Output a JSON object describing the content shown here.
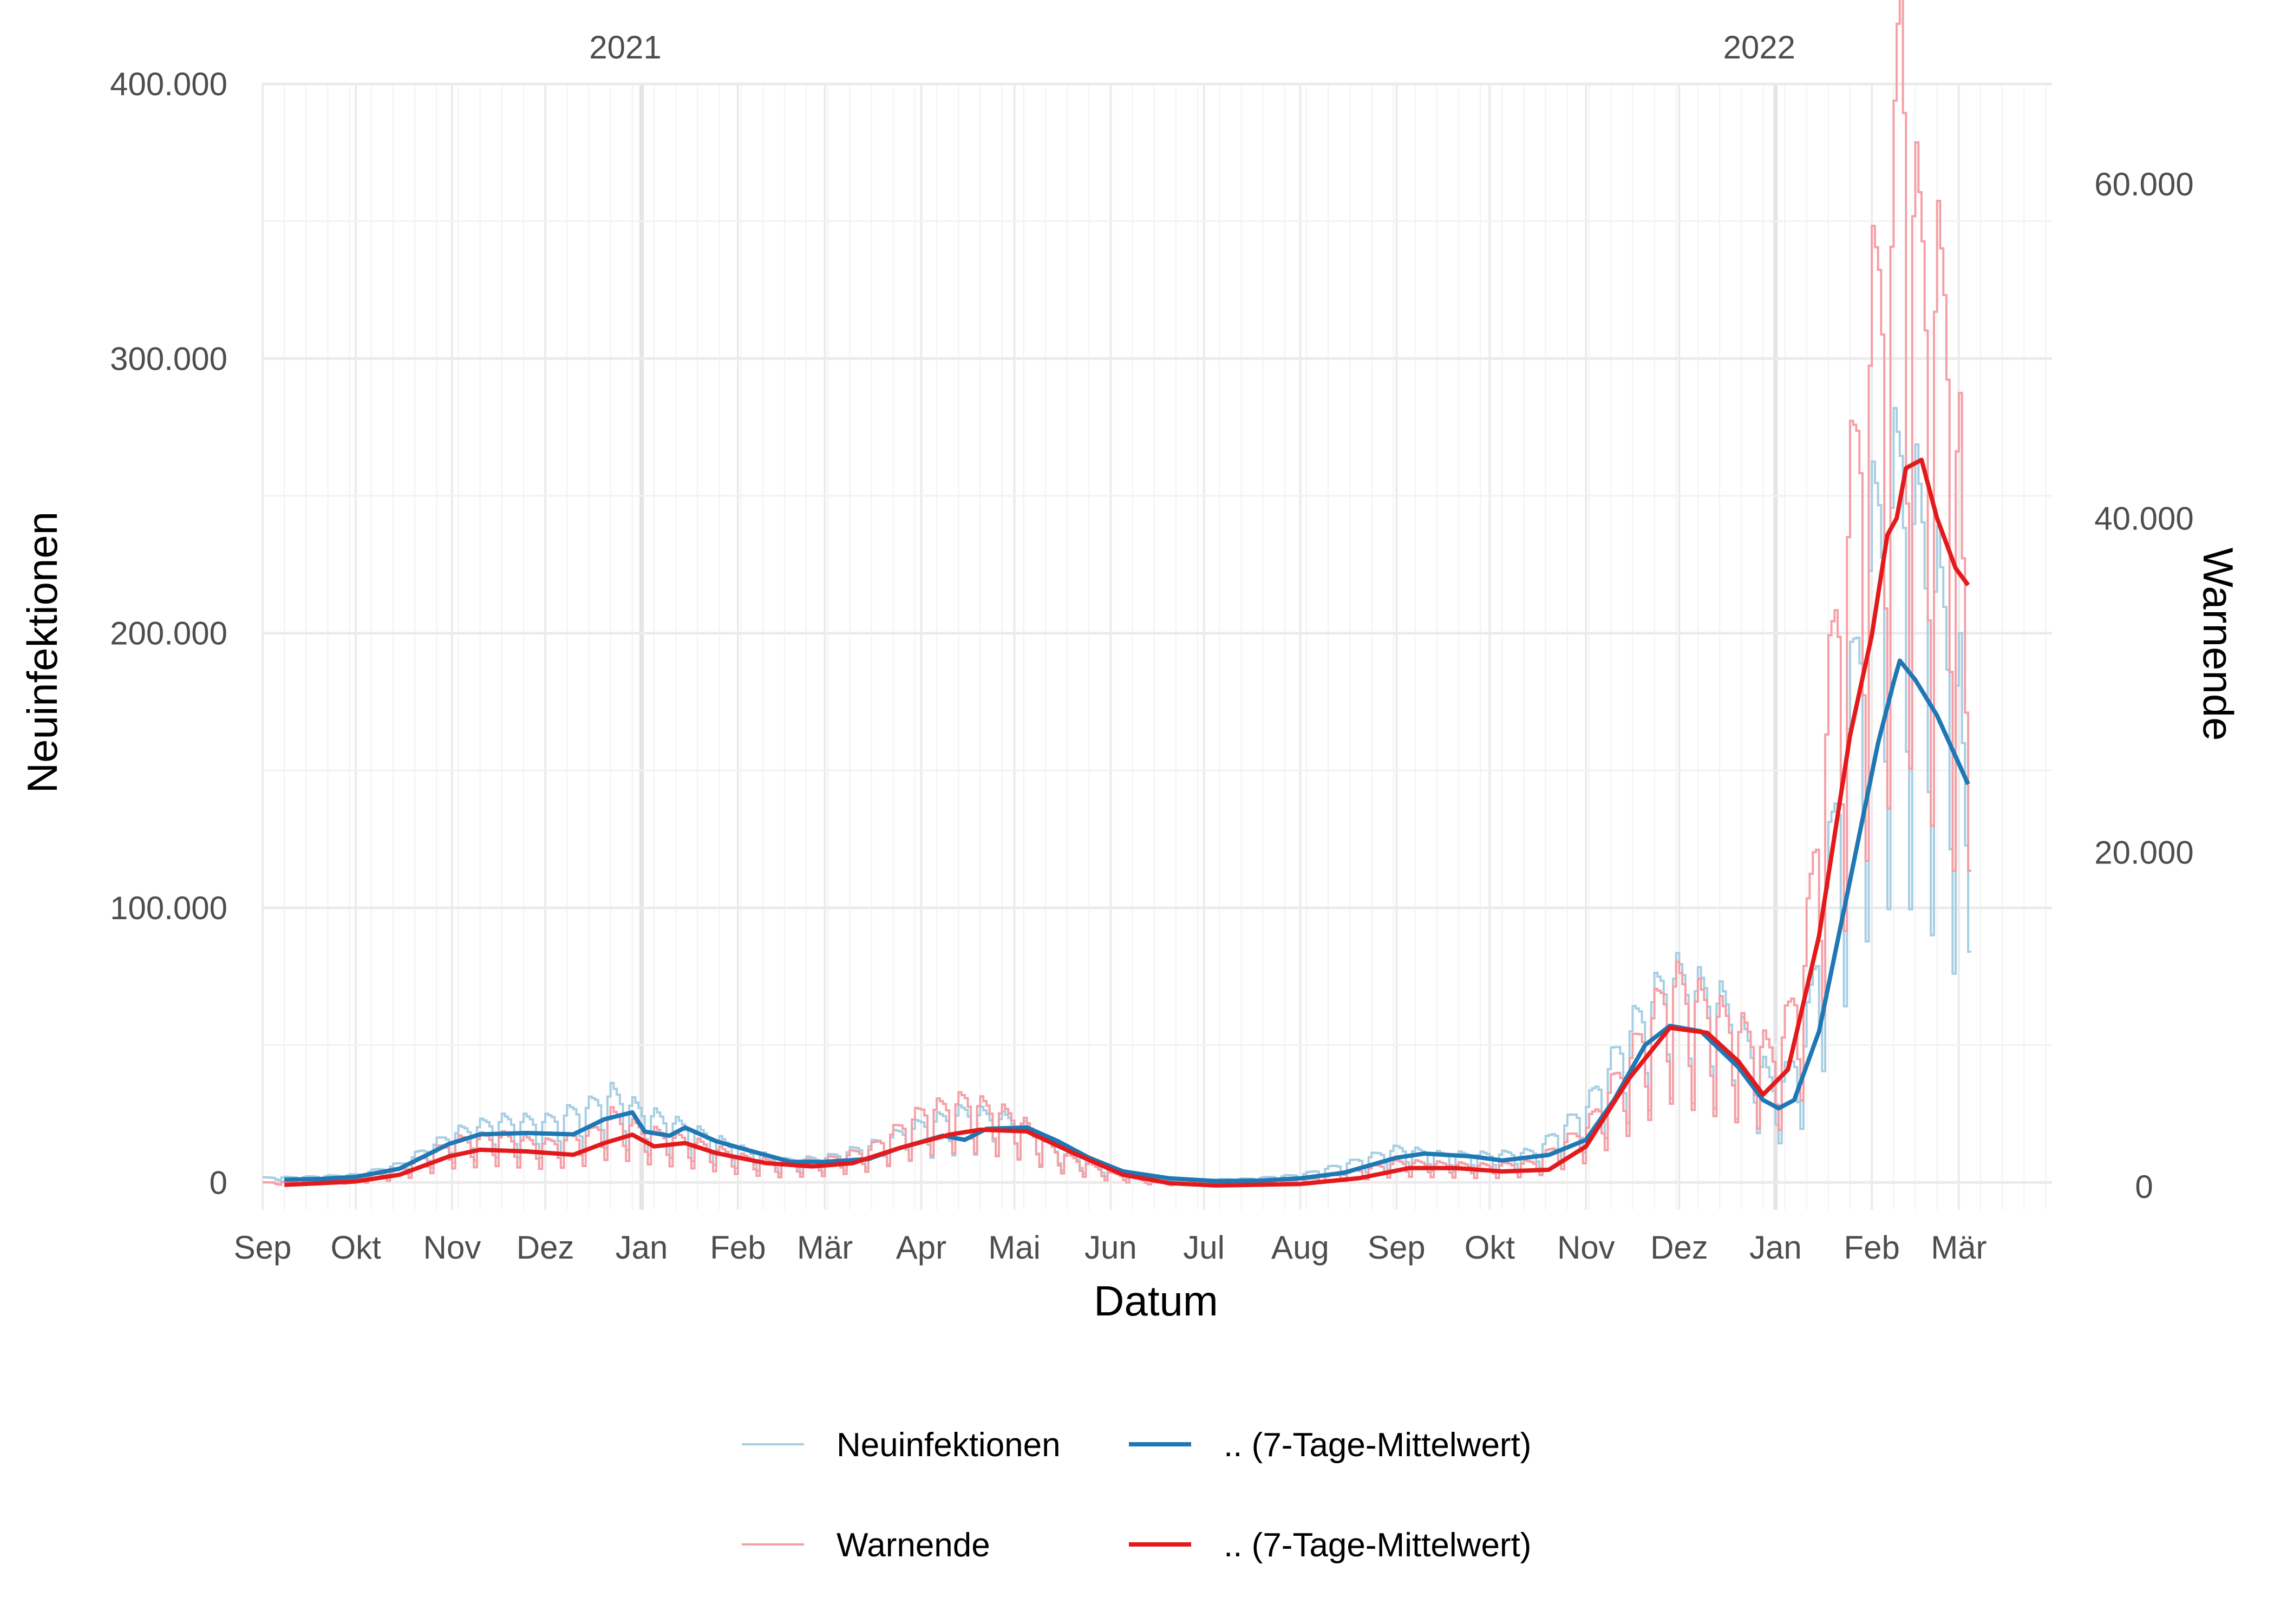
{
  "chart_data": {
    "type": "line",
    "xlabel": "Datum",
    "ylabel": "Neuinfektionen",
    "y2label": "Warnende",
    "x_range": [
      "2020-09-01",
      "2022-03-31"
    ],
    "ylim": [
      -10000,
      400000
    ],
    "y2lim": [
      -1400,
      66000
    ],
    "year_labels": [
      {
        "label": "2021",
        "date": "2021-01-01"
      },
      {
        "label": "2022",
        "date": "2022-01-01"
      }
    ],
    "x_ticks": [
      {
        "label": "Sep",
        "date": "2020-09-01"
      },
      {
        "label": "Okt",
        "date": "2020-10-01"
      },
      {
        "label": "Nov",
        "date": "2020-11-01"
      },
      {
        "label": "Dez",
        "date": "2020-12-01"
      },
      {
        "label": "Jan",
        "date": "2021-01-01"
      },
      {
        "label": "Feb",
        "date": "2021-02-01"
      },
      {
        "label": "Mär",
        "date": "2021-03-01"
      },
      {
        "label": "Apr",
        "date": "2021-04-01"
      },
      {
        "label": "Mai",
        "date": "2021-05-01"
      },
      {
        "label": "Jun",
        "date": "2021-06-01"
      },
      {
        "label": "Jul",
        "date": "2021-07-01"
      },
      {
        "label": "Aug",
        "date": "2021-08-01"
      },
      {
        "label": "Sep",
        "date": "2021-09-01"
      },
      {
        "label": "Okt",
        "date": "2021-10-01"
      },
      {
        "label": "Nov",
        "date": "2021-11-01"
      },
      {
        "label": "Dez",
        "date": "2021-12-01"
      },
      {
        "label": "Jan",
        "date": "2022-01-01"
      },
      {
        "label": "Feb",
        "date": "2022-02-01"
      },
      {
        "label": "Mär",
        "date": "2022-03-01"
      }
    ],
    "y_ticks": [
      {
        "label": "0",
        "value": 0
      },
      {
        "label": "100.000",
        "value": 100000
      },
      {
        "label": "200.000",
        "value": 200000
      },
      {
        "label": "300.000",
        "value": 300000
      },
      {
        "label": "400.000",
        "value": 400000
      }
    ],
    "y2_ticks": [
      {
        "label": "0",
        "value": 0
      },
      {
        "label": "20.000",
        "value": 20000
      },
      {
        "label": "40.000",
        "value": 40000
      },
      {
        "label": "60.000",
        "value": 60000
      }
    ],
    "grid": true,
    "legend_position": "bottom",
    "legend": [
      {
        "label": "Neuinfektionen",
        "color": "#a6cee3"
      },
      {
        "label": ".. (7-Tage-Mittelwert)",
        "color": "#1f78b4"
      },
      {
        "label": "Warnende",
        "color": "#f4a0a6"
      },
      {
        "label": ".. (7-Tage-Mittelwert)",
        "color": "#e31a1c"
      }
    ],
    "series": [
      {
        "name": "Neuinfektionen",
        "axis": "left",
        "style": "daily",
        "color": "#a6cee3",
        "points": [
          [
            "2020-09-01",
            1500
          ],
          [
            "2020-09-15",
            1800
          ],
          [
            "2020-10-01",
            2500
          ],
          [
            "2020-10-15",
            6000
          ],
          [
            "2020-11-01",
            16000
          ],
          [
            "2020-11-15",
            20000
          ],
          [
            "2020-12-01",
            20000
          ],
          [
            "2020-12-15",
            25000
          ],
          [
            "2020-12-22",
            29000
          ],
          [
            "2021-01-01",
            23000
          ],
          [
            "2021-01-15",
            18000
          ],
          [
            "2021-02-01",
            11000
          ],
          [
            "2021-02-15",
            7000
          ],
          [
            "2021-03-01",
            8000
          ],
          [
            "2021-03-15",
            12000
          ],
          [
            "2021-04-01",
            19000
          ],
          [
            "2021-04-15",
            23000
          ],
          [
            "2021-05-01",
            20000
          ],
          [
            "2021-05-15",
            10000
          ],
          [
            "2021-06-01",
            4000
          ],
          [
            "2021-06-15",
            1500
          ],
          [
            "2021-07-01",
            800
          ],
          [
            "2021-07-15",
            1200
          ],
          [
            "2021-08-01",
            2500
          ],
          [
            "2021-08-15",
            6000
          ],
          [
            "2021-09-01",
            11000
          ],
          [
            "2021-09-15",
            9000
          ],
          [
            "2021-10-01",
            9000
          ],
          [
            "2021-10-15",
            10000
          ],
          [
            "2021-11-01",
            25000
          ],
          [
            "2021-11-15",
            50000
          ],
          [
            "2021-11-28",
            68000
          ],
          [
            "2021-12-15",
            58000
          ],
          [
            "2022-01-01",
            30000
          ],
          [
            "2022-01-10",
            45000
          ],
          [
            "2022-01-20",
            120000
          ],
          [
            "2022-02-01",
            210000
          ],
          [
            "2022-02-10",
            230000
          ],
          [
            "2022-02-20",
            200000
          ],
          [
            "2022-03-01",
            160000
          ],
          [
            "2022-03-04",
            80000
          ]
        ]
      },
      {
        "name": ".. (7-Tage-Mittelwert)",
        "axis": "left",
        "style": "mean",
        "color": "#1f78b4",
        "points": [
          [
            "2020-09-08",
            1000
          ],
          [
            "2020-09-20",
            1300
          ],
          [
            "2020-10-01",
            2000
          ],
          [
            "2020-10-15",
            5000
          ],
          [
            "2020-10-31",
            14000
          ],
          [
            "2020-11-10",
            17500
          ],
          [
            "2020-11-25",
            18000
          ],
          [
            "2020-12-10",
            17500
          ],
          [
            "2020-12-20",
            23000
          ],
          [
            "2020-12-29",
            25500
          ],
          [
            "2021-01-02",
            18500
          ],
          [
            "2021-01-10",
            17000
          ],
          [
            "2021-01-15",
            20000
          ],
          [
            "2021-01-25",
            15000
          ],
          [
            "2021-02-05",
            11500
          ],
          [
            "2021-02-18",
            7500
          ],
          [
            "2021-03-01",
            7500
          ],
          [
            "2021-03-15",
            8500
          ],
          [
            "2021-03-25",
            12500
          ],
          [
            "2021-04-08",
            17000
          ],
          [
            "2021-04-15",
            15500
          ],
          [
            "2021-04-22",
            19500
          ],
          [
            "2021-05-05",
            20000
          ],
          [
            "2021-05-15",
            15000
          ],
          [
            "2021-05-25",
            9000
          ],
          [
            "2021-06-05",
            4000
          ],
          [
            "2021-06-20",
            1500
          ],
          [
            "2021-07-05",
            500
          ],
          [
            "2021-07-20",
            700
          ],
          [
            "2021-08-01",
            1500
          ],
          [
            "2021-08-15",
            3500
          ],
          [
            "2021-09-01",
            9000
          ],
          [
            "2021-09-10",
            10500
          ],
          [
            "2021-09-25",
            9500
          ],
          [
            "2021-10-05",
            8000
          ],
          [
            "2021-10-20",
            10000
          ],
          [
            "2021-11-01",
            15500
          ],
          [
            "2021-11-10",
            30000
          ],
          [
            "2021-11-20",
            50000
          ],
          [
            "2021-11-28",
            57000
          ],
          [
            "2021-12-08",
            55000
          ],
          [
            "2021-12-20",
            42000
          ],
          [
            "2021-12-28",
            30000
          ],
          [
            "2022-01-02",
            27000
          ],
          [
            "2022-01-07",
            30000
          ],
          [
            "2022-01-15",
            55000
          ],
          [
            "2022-01-25",
            110000
          ],
          [
            "2022-02-03",
            160000
          ],
          [
            "2022-02-08",
            182000
          ],
          [
            "2022-02-10",
            190000
          ],
          [
            "2022-02-15",
            183000
          ],
          [
            "2022-02-22",
            170000
          ],
          [
            "2022-02-28",
            155000
          ],
          [
            "2022-03-04",
            145000
          ]
        ]
      },
      {
        "name": "Warnende",
        "axis": "right",
        "style": "daily",
        "color": "#f4a0a6",
        "points": [
          [
            "2020-09-01",
            200
          ],
          [
            "2020-09-15",
            300
          ],
          [
            "2020-10-01",
            400
          ],
          [
            "2020-10-15",
            900
          ],
          [
            "2020-11-01",
            2400
          ],
          [
            "2020-11-15",
            2700
          ],
          [
            "2020-12-01",
            2300
          ],
          [
            "2020-12-15",
            2800
          ],
          [
            "2020-12-22",
            3800
          ],
          [
            "2021-01-01",
            3000
          ],
          [
            "2021-01-15",
            2500
          ],
          [
            "2021-02-01",
            1600
          ],
          [
            "2021-02-15",
            1200
          ],
          [
            "2021-03-01",
            1400
          ],
          [
            "2021-03-15",
            2000
          ],
          [
            "2021-04-01",
            4000
          ],
          [
            "2021-04-15",
            4600
          ],
          [
            "2021-05-01",
            3700
          ],
          [
            "2021-05-15",
            1800
          ],
          [
            "2021-06-01",
            700
          ],
          [
            "2021-06-15",
            200
          ],
          [
            "2021-07-01",
            100
          ],
          [
            "2021-07-15",
            150
          ],
          [
            "2021-08-01",
            300
          ],
          [
            "2021-08-15",
            700
          ],
          [
            "2021-09-01",
            1300
          ],
          [
            "2021-09-15",
            1200
          ],
          [
            "2021-10-01",
            1100
          ],
          [
            "2021-10-15",
            1300
          ],
          [
            "2021-11-01",
            3200
          ],
          [
            "2021-11-15",
            7000
          ],
          [
            "2021-11-28",
            11000
          ],
          [
            "2021-12-15",
            9000
          ],
          [
            "2022-01-01",
            7000
          ],
          [
            "2022-01-10",
            12000
          ],
          [
            "2022-01-20",
            30000
          ],
          [
            "2022-02-01",
            46000
          ],
          [
            "2022-02-08",
            52000
          ],
          [
            "2022-02-10",
            64000
          ],
          [
            "2022-02-15",
            50000
          ],
          [
            "2022-02-25",
            46000
          ],
          [
            "2022-03-01",
            38000
          ],
          [
            "2022-03-04",
            18000
          ]
        ]
      },
      {
        "name": ".. (7-Tage-Mittelwert)",
        "axis": "right",
        "style": "mean",
        "color": "#e31a1c",
        "points": [
          [
            "2020-09-08",
            100
          ],
          [
            "2020-09-20",
            200
          ],
          [
            "2020-10-01",
            300
          ],
          [
            "2020-10-15",
            700
          ],
          [
            "2020-10-31",
            1800
          ],
          [
            "2020-11-10",
            2200
          ],
          [
            "2020-11-25",
            2100
          ],
          [
            "2020-12-10",
            1900
          ],
          [
            "2020-12-20",
            2600
          ],
          [
            "2020-12-29",
            3100
          ],
          [
            "2021-01-05",
            2400
          ],
          [
            "2021-01-15",
            2600
          ],
          [
            "2021-01-25",
            2000
          ],
          [
            "2021-02-10",
            1400
          ],
          [
            "2021-02-25",
            1200
          ],
          [
            "2021-03-10",
            1400
          ],
          [
            "2021-03-25",
            2300
          ],
          [
            "2021-04-10",
            3100
          ],
          [
            "2021-04-20",
            3400
          ],
          [
            "2021-05-05",
            3300
          ],
          [
            "2021-05-20",
            2000
          ],
          [
            "2021-06-05",
            700
          ],
          [
            "2021-06-20",
            200
          ],
          [
            "2021-07-05",
            60
          ],
          [
            "2021-08-01",
            150
          ],
          [
            "2021-08-20",
            500
          ],
          [
            "2021-09-05",
            1100
          ],
          [
            "2021-09-20",
            1100
          ],
          [
            "2021-10-05",
            900
          ],
          [
            "2021-10-20",
            1000
          ],
          [
            "2021-11-01",
            2400
          ],
          [
            "2021-11-15",
            6500
          ],
          [
            "2021-11-28",
            9500
          ],
          [
            "2021-12-10",
            9200
          ],
          [
            "2021-12-20",
            7500
          ],
          [
            "2021-12-28",
            5500
          ],
          [
            "2022-01-05",
            7000
          ],
          [
            "2022-01-15",
            15000
          ],
          [
            "2022-01-25",
            27000
          ],
          [
            "2022-02-01",
            33000
          ],
          [
            "2022-02-06",
            39000
          ],
          [
            "2022-02-09",
            40000
          ],
          [
            "2022-02-12",
            43000
          ],
          [
            "2022-02-17",
            43500
          ],
          [
            "2022-02-22",
            40000
          ],
          [
            "2022-02-28",
            37000
          ],
          [
            "2022-03-04",
            36000
          ]
        ]
      }
    ]
  }
}
